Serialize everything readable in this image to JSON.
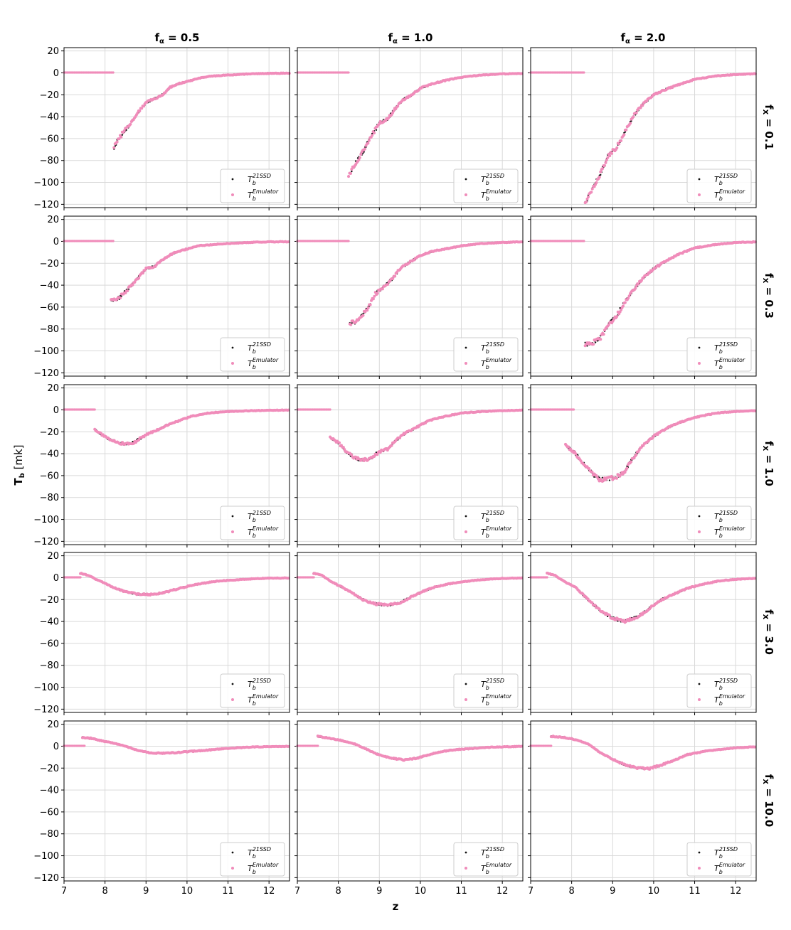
{
  "figure": {
    "xlabel": "z",
    "ylabel_main": "T",
    "ylabel_sub": "b",
    "ylabel_unit": " [mk]"
  },
  "columns": [
    {
      "title_main": "f",
      "title_sub": "α",
      "title_value": " = 0.5"
    },
    {
      "title_main": "f",
      "title_sub": "α",
      "title_value": " = 1.0"
    },
    {
      "title_main": "f",
      "title_sub": "α",
      "title_value": " = 2.0"
    }
  ],
  "rows": [
    {
      "title_main": "f",
      "title_sub": "X",
      "title_value": " = 0.1"
    },
    {
      "title_main": "f",
      "title_sub": "X",
      "title_value": " = 0.3"
    },
    {
      "title_main": "f",
      "title_sub": "X",
      "title_value": " = 1.0"
    },
    {
      "title_main": "f",
      "title_sub": "X",
      "title_value": " = 3.0"
    },
    {
      "title_main": "f",
      "title_sub": "X",
      "title_value": " = 10.0"
    }
  ],
  "legend": {
    "entries": [
      {
        "main": "T",
        "sub": "b",
        "sup": "21SSD",
        "color": "#111111"
      },
      {
        "main": "T",
        "sub": "b",
        "sup": "Emulator",
        "color": "#f08cba"
      }
    ]
  },
  "colors": {
    "ssd": "#111111",
    "emulator": "#f08cba",
    "grid": "#d9d9d9"
  },
  "chart_data": {
    "type": "scatter",
    "layout": "5 rows x 3 columns grid, shared axes",
    "xlim": [
      7,
      12.5
    ],
    "ylim": [
      -123,
      23
    ],
    "xticks": [
      7,
      8,
      9,
      10,
      11,
      12
    ],
    "yticks": [
      20,
      0,
      -20,
      -40,
      -60,
      -80,
      -100,
      -120
    ],
    "grid": true,
    "legend_position": "lower-right",
    "series_names": [
      "T_b^21SSD",
      "T_b^Emulator"
    ],
    "panels": [
      {
        "row": 0,
        "col": 0,
        "zeroline_end": 8.2,
        "curve": [
          [
            8.22,
            -68
          ],
          [
            8.3,
            -62
          ],
          [
            8.45,
            -54
          ],
          [
            8.6,
            -47
          ],
          [
            8.8,
            -36
          ],
          [
            9.0,
            -27
          ],
          [
            9.2,
            -24
          ],
          [
            9.4,
            -20
          ],
          [
            9.6,
            -13
          ],
          [
            9.8,
            -10
          ],
          [
            10.0,
            -8
          ],
          [
            10.3,
            -5
          ],
          [
            10.6,
            -3
          ],
          [
            11.0,
            -2
          ],
          [
            11.5,
            -1
          ],
          [
            12.0,
            -0.5
          ],
          [
            12.5,
            -0.3
          ]
        ]
      },
      {
        "row": 0,
        "col": 1,
        "zeroline_end": 8.25,
        "curve": [
          [
            8.25,
            -94
          ],
          [
            8.4,
            -84
          ],
          [
            8.6,
            -72
          ],
          [
            8.8,
            -58
          ],
          [
            9.0,
            -46
          ],
          [
            9.2,
            -42
          ],
          [
            9.4,
            -32
          ],
          [
            9.6,
            -24
          ],
          [
            9.8,
            -20
          ],
          [
            10.0,
            -14
          ],
          [
            10.3,
            -10
          ],
          [
            10.6,
            -7
          ],
          [
            11.0,
            -4
          ],
          [
            11.5,
            -2
          ],
          [
            12.0,
            -1
          ],
          [
            12.5,
            -0.5
          ]
        ]
      },
      {
        "row": 0,
        "col": 2,
        "zeroline_end": 8.3,
        "curve": [
          [
            8.33,
            -119
          ],
          [
            8.5,
            -106
          ],
          [
            8.7,
            -92
          ],
          [
            8.9,
            -75
          ],
          [
            9.1,
            -68
          ],
          [
            9.3,
            -54
          ],
          [
            9.5,
            -40
          ],
          [
            9.7,
            -30
          ],
          [
            10.0,
            -20
          ],
          [
            10.3,
            -15
          ],
          [
            10.6,
            -11
          ],
          [
            11.0,
            -6
          ],
          [
            11.5,
            -3
          ],
          [
            12.0,
            -1.5
          ],
          [
            12.5,
            -0.8
          ]
        ]
      },
      {
        "row": 1,
        "col": 0,
        "zeroline_end": 8.2,
        "curve": [
          [
            8.15,
            -54
          ],
          [
            8.3,
            -53
          ],
          [
            8.5,
            -46
          ],
          [
            8.7,
            -38
          ],
          [
            9.0,
            -25
          ],
          [
            9.2,
            -23
          ],
          [
            9.4,
            -17
          ],
          [
            9.6,
            -12
          ],
          [
            9.8,
            -9
          ],
          [
            10.0,
            -7
          ],
          [
            10.3,
            -4
          ],
          [
            10.6,
            -3
          ],
          [
            11.0,
            -2
          ],
          [
            11.5,
            -1
          ],
          [
            12.0,
            -0.5
          ],
          [
            12.5,
            -0.3
          ]
        ]
      },
      {
        "row": 1,
        "col": 1,
        "zeroline_end": 8.25,
        "curve": [
          [
            8.28,
            -75
          ],
          [
            8.5,
            -72
          ],
          [
            8.7,
            -62
          ],
          [
            8.9,
            -48
          ],
          [
            9.1,
            -42
          ],
          [
            9.3,
            -35
          ],
          [
            9.5,
            -25
          ],
          [
            9.7,
            -20
          ],
          [
            10.0,
            -13
          ],
          [
            10.3,
            -9
          ],
          [
            10.6,
            -7
          ],
          [
            11.0,
            -4
          ],
          [
            11.5,
            -2
          ],
          [
            12.0,
            -1
          ],
          [
            12.5,
            -0.5
          ]
        ]
      },
      {
        "row": 1,
        "col": 2,
        "zeroline_end": 8.3,
        "curve": [
          [
            8.33,
            -94
          ],
          [
            8.5,
            -93
          ],
          [
            8.7,
            -88
          ],
          [
            8.9,
            -76
          ],
          [
            9.1,
            -68
          ],
          [
            9.3,
            -55
          ],
          [
            9.5,
            -45
          ],
          [
            9.7,
            -35
          ],
          [
            10.0,
            -25
          ],
          [
            10.3,
            -18
          ],
          [
            10.6,
            -12
          ],
          [
            11.0,
            -6
          ],
          [
            11.5,
            -3
          ],
          [
            12.0,
            -1
          ],
          [
            12.5,
            -0.5
          ]
        ]
      },
      {
        "row": 2,
        "col": 0,
        "zeroline_end": 7.75,
        "curve": [
          [
            7.75,
            -18
          ],
          [
            7.9,
            -22
          ],
          [
            8.1,
            -27
          ],
          [
            8.3,
            -30
          ],
          [
            8.5,
            -31
          ],
          [
            8.7,
            -30
          ],
          [
            8.9,
            -25
          ],
          [
            9.1,
            -21
          ],
          [
            9.3,
            -18
          ],
          [
            9.5,
            -14
          ],
          [
            9.8,
            -10
          ],
          [
            10.1,
            -6
          ],
          [
            10.5,
            -3
          ],
          [
            11.0,
            -1.5
          ],
          [
            11.5,
            -0.8
          ],
          [
            12.0,
            -0.4
          ],
          [
            12.5,
            -0.2
          ]
        ]
      },
      {
        "row": 2,
        "col": 1,
        "zeroline_end": 7.8,
        "curve": [
          [
            7.8,
            -25
          ],
          [
            8.0,
            -30
          ],
          [
            8.2,
            -38
          ],
          [
            8.4,
            -44
          ],
          [
            8.6,
            -46
          ],
          [
            8.8,
            -44
          ],
          [
            9.0,
            -38
          ],
          [
            9.2,
            -36
          ],
          [
            9.4,
            -28
          ],
          [
            9.6,
            -22
          ],
          [
            9.9,
            -16
          ],
          [
            10.2,
            -10
          ],
          [
            10.6,
            -6
          ],
          [
            11.0,
            -3
          ],
          [
            11.5,
            -1.5
          ],
          [
            12.0,
            -0.7
          ],
          [
            12.5,
            -0.3
          ]
        ]
      },
      {
        "row": 2,
        "col": 2,
        "zeroline_end": 8.05,
        "curve": [
          [
            7.85,
            -32
          ],
          [
            8.1,
            -40
          ],
          [
            8.3,
            -50
          ],
          [
            8.5,
            -58
          ],
          [
            8.7,
            -64
          ],
          [
            8.9,
            -63
          ],
          [
            9.1,
            -61
          ],
          [
            9.3,
            -56
          ],
          [
            9.5,
            -44
          ],
          [
            9.7,
            -34
          ],
          [
            10.0,
            -24
          ],
          [
            10.3,
            -17
          ],
          [
            10.6,
            -12
          ],
          [
            11.0,
            -7
          ],
          [
            11.5,
            -3
          ],
          [
            12.0,
            -1.5
          ],
          [
            12.5,
            -0.7
          ]
        ]
      },
      {
        "row": 3,
        "col": 0,
        "zeroline_end": 7.4,
        "curve": [
          [
            7.4,
            4
          ],
          [
            7.6,
            2
          ],
          [
            7.8,
            -2
          ],
          [
            8.0,
            -5
          ],
          [
            8.2,
            -9
          ],
          [
            8.5,
            -13
          ],
          [
            8.8,
            -15
          ],
          [
            9.1,
            -15.5
          ],
          [
            9.4,
            -14
          ],
          [
            9.7,
            -11
          ],
          [
            10.0,
            -8
          ],
          [
            10.4,
            -5
          ],
          [
            10.8,
            -3
          ],
          [
            11.2,
            -2
          ],
          [
            11.6,
            -1
          ],
          [
            12.0,
            -0.5
          ],
          [
            12.5,
            -0.3
          ]
        ]
      },
      {
        "row": 3,
        "col": 1,
        "zeroline_end": 7.4,
        "curve": [
          [
            7.4,
            4
          ],
          [
            7.6,
            2
          ],
          [
            7.8,
            -3
          ],
          [
            8.0,
            -7
          ],
          [
            8.3,
            -13
          ],
          [
            8.6,
            -20
          ],
          [
            8.9,
            -24
          ],
          [
            9.2,
            -25
          ],
          [
            9.5,
            -23
          ],
          [
            9.8,
            -17
          ],
          [
            10.1,
            -12
          ],
          [
            10.4,
            -8
          ],
          [
            10.8,
            -5
          ],
          [
            11.2,
            -3
          ],
          [
            11.6,
            -1.5
          ],
          [
            12.0,
            -0.7
          ],
          [
            12.5,
            -0.3
          ]
        ]
      },
      {
        "row": 3,
        "col": 2,
        "zeroline_end": 7.4,
        "curve": [
          [
            7.4,
            4
          ],
          [
            7.6,
            2
          ],
          [
            7.8,
            -3
          ],
          [
            8.1,
            -9
          ],
          [
            8.4,
            -20
          ],
          [
            8.7,
            -30
          ],
          [
            9.0,
            -37
          ],
          [
            9.3,
            -40
          ],
          [
            9.6,
            -36
          ],
          [
            9.9,
            -28
          ],
          [
            10.2,
            -20
          ],
          [
            10.5,
            -15
          ],
          [
            10.8,
            -10
          ],
          [
            11.2,
            -6
          ],
          [
            11.6,
            -3
          ],
          [
            12.0,
            -1.5
          ],
          [
            12.5,
            -0.6
          ]
        ]
      },
      {
        "row": 4,
        "col": 0,
        "zeroline_end": 7.5,
        "curve": [
          [
            7.45,
            8
          ],
          [
            7.7,
            7
          ],
          [
            7.9,
            5
          ],
          [
            8.2,
            3
          ],
          [
            8.5,
            0
          ],
          [
            8.8,
            -4
          ],
          [
            9.1,
            -6
          ],
          [
            9.4,
            -6.5
          ],
          [
            9.7,
            -6
          ],
          [
            10.0,
            -5
          ],
          [
            10.4,
            -4
          ],
          [
            10.8,
            -2.5
          ],
          [
            11.2,
            -1.5
          ],
          [
            11.6,
            -0.8
          ],
          [
            12.0,
            -0.4
          ],
          [
            12.5,
            -0.2
          ]
        ]
      },
      {
        "row": 4,
        "col": 1,
        "zeroline_end": 7.5,
        "curve": [
          [
            7.5,
            9
          ],
          [
            7.8,
            7
          ],
          [
            8.1,
            5
          ],
          [
            8.4,
            2
          ],
          [
            8.7,
            -3
          ],
          [
            9.0,
            -8
          ],
          [
            9.3,
            -11
          ],
          [
            9.6,
            -12.5
          ],
          [
            9.9,
            -11
          ],
          [
            10.2,
            -8
          ],
          [
            10.5,
            -5
          ],
          [
            10.9,
            -3
          ],
          [
            11.3,
            -2
          ],
          [
            11.7,
            -1
          ],
          [
            12.1,
            -0.5
          ],
          [
            12.5,
            -0.2
          ]
        ]
      },
      {
        "row": 4,
        "col": 2,
        "zeroline_end": 7.5,
        "curve": [
          [
            7.5,
            9
          ],
          [
            7.8,
            8
          ],
          [
            8.1,
            6
          ],
          [
            8.4,
            2
          ],
          [
            8.7,
            -6
          ],
          [
            9.0,
            -12
          ],
          [
            9.3,
            -17
          ],
          [
            9.6,
            -20
          ],
          [
            9.9,
            -20.5
          ],
          [
            10.2,
            -17
          ],
          [
            10.5,
            -13
          ],
          [
            10.8,
            -8
          ],
          [
            11.2,
            -5
          ],
          [
            11.6,
            -3
          ],
          [
            12.0,
            -1.5
          ],
          [
            12.5,
            -0.5
          ]
        ]
      }
    ]
  }
}
